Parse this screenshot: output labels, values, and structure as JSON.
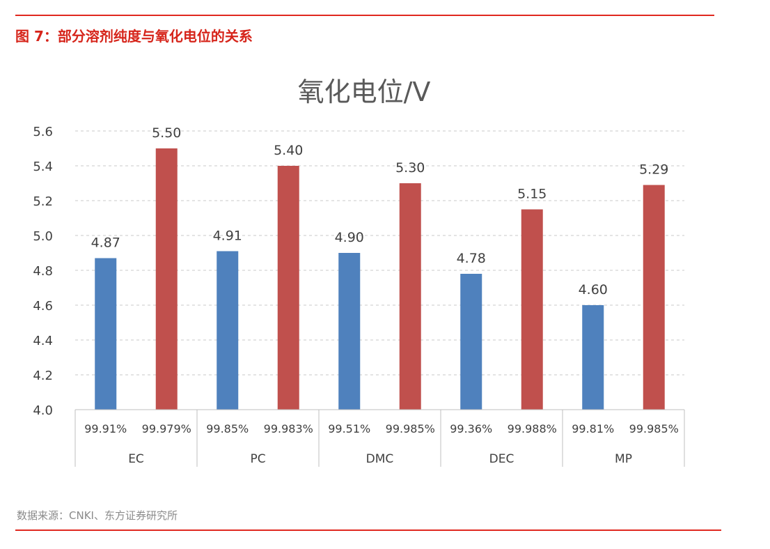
{
  "figure_title": "图 7：部分溶剂纯度与氧化电位的关系",
  "source": "数据来源：CNKI、东方证券研究所",
  "colors": {
    "accent": "#e0281f",
    "series_a": "#4f81bd",
    "series_b": "#c0504d"
  },
  "chart_data": {
    "type": "bar",
    "title": "氧化电位/V",
    "ylim": [
      4.0,
      5.6
    ],
    "yticks": [
      "4.0",
      "4.2",
      "4.4",
      "4.6",
      "4.8",
      "5.0",
      "5.2",
      "5.4",
      "5.6"
    ],
    "grid": true,
    "groups": [
      {
        "name": "EC",
        "bars": [
          {
            "purity": "99.91%",
            "value": 4.87,
            "label": "4.87"
          },
          {
            "purity": "99.979%",
            "value": 5.5,
            "label": "5.50"
          }
        ]
      },
      {
        "name": "PC",
        "bars": [
          {
            "purity": "99.85%",
            "value": 4.91,
            "label": "4.91"
          },
          {
            "purity": "99.983%",
            "value": 5.4,
            "label": "5.40"
          }
        ]
      },
      {
        "name": "DMC",
        "bars": [
          {
            "purity": "99.51%",
            "value": 4.9,
            "label": "4.90"
          },
          {
            "purity": "99.985%",
            "value": 5.3,
            "label": "5.30"
          }
        ]
      },
      {
        "name": "DEC",
        "bars": [
          {
            "purity": "99.36%",
            "value": 4.78,
            "label": "4.78"
          },
          {
            "purity": "99.988%",
            "value": 5.15,
            "label": "5.15"
          }
        ]
      },
      {
        "name": "MP",
        "bars": [
          {
            "purity": "99.81%",
            "value": 4.6,
            "label": "4.60"
          },
          {
            "purity": "99.985%",
            "value": 5.29,
            "label": "5.29"
          }
        ]
      }
    ]
  }
}
